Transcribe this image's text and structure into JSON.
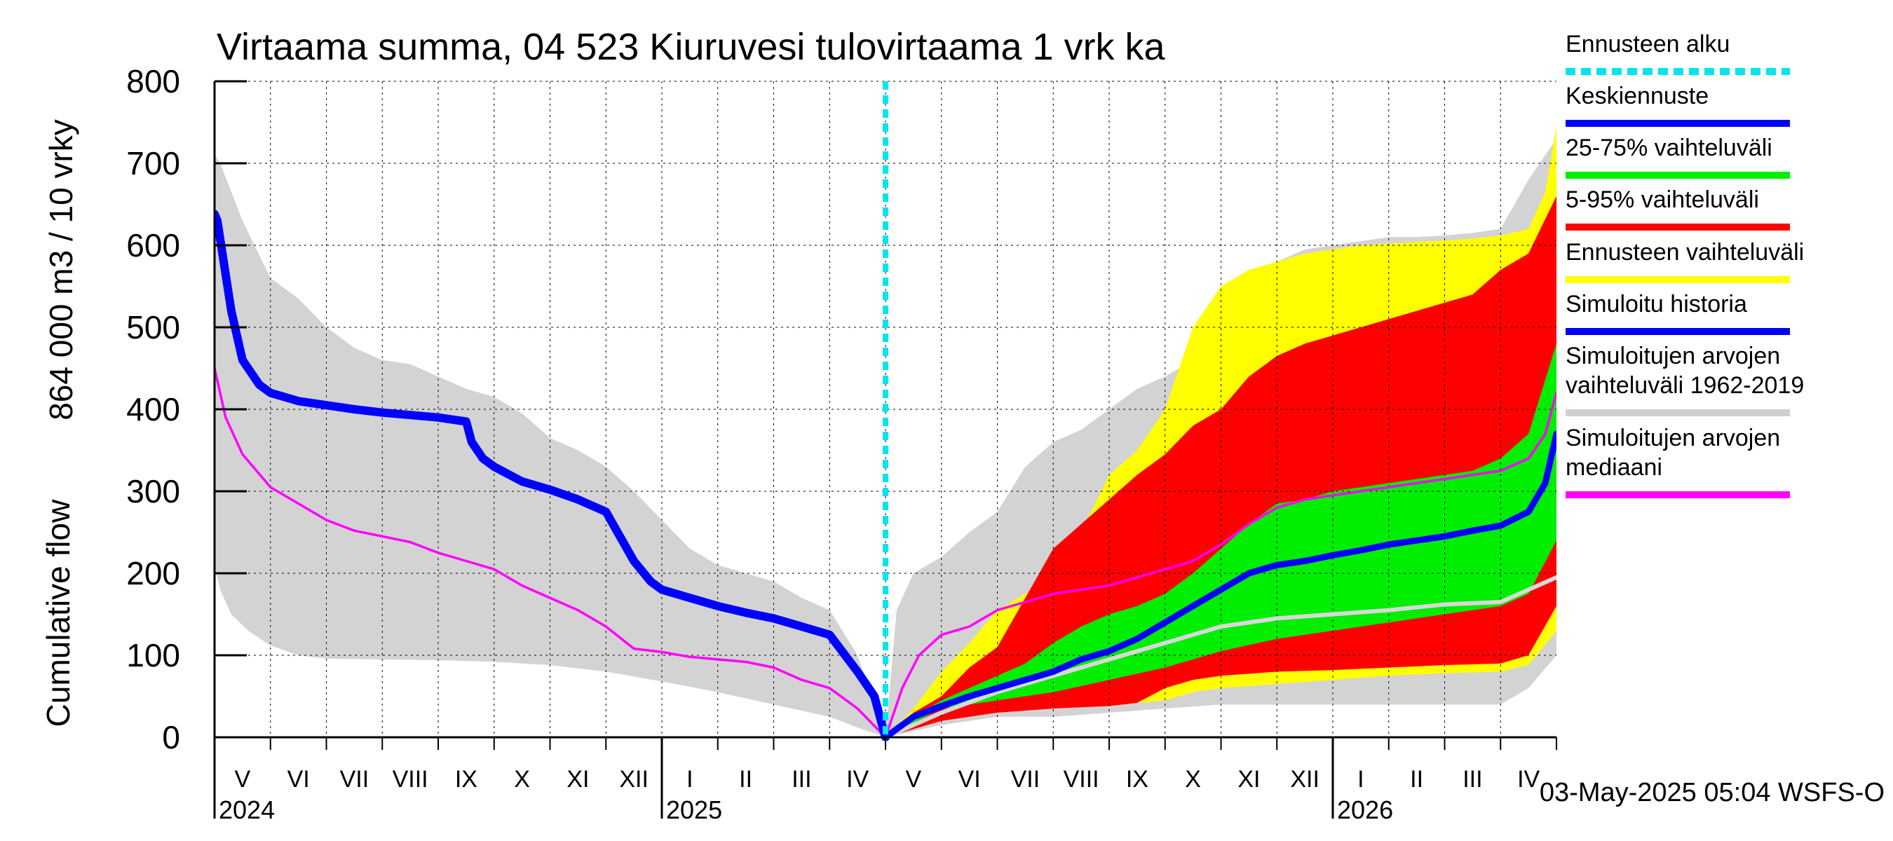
{
  "chart_data": {
    "type": "area",
    "title": "Virtaama summa, 04 523 Kiuruvesi tulovirtaama 1 vrk ka",
    "ylabel": "864 000 m3 / 10 vrky",
    "ylabel2": "Cumulative flow",
    "ylim": [
      0,
      800
    ],
    "yticks": [
      "0",
      "100",
      "200",
      "300",
      "400",
      "500",
      "600",
      "700",
      "800"
    ],
    "xlim": [
      0,
      24
    ],
    "months": [
      "V",
      "VI",
      "VII",
      "VIII",
      "IX",
      "X",
      "XI",
      "XII",
      "I",
      "II",
      "III",
      "IV",
      "V",
      "VI",
      "VII",
      "VIII",
      "IX",
      "X",
      "XI",
      "XII",
      "I",
      "II",
      "III",
      "IV"
    ],
    "years": [
      {
        "label": "2024",
        "x": 0
      },
      {
        "label": "2025",
        "x": 8
      },
      {
        "label": "2026",
        "x": 20
      }
    ],
    "forecast_start_x": 12,
    "footer": "03-May-2025 05:04 WSFS-O",
    "legend": [
      {
        "label": "Ennusteen alku",
        "color": "#00e5ee",
        "style": "dashed"
      },
      {
        "label": "Keskiennuste",
        "color": "#0000ff",
        "style": "solid"
      },
      {
        "label": "25-75% vaihteluväli",
        "color": "#00ee00",
        "style": "solid"
      },
      {
        "label": "5-95% vaihteluväli",
        "color": "#ff0000",
        "style": "solid"
      },
      {
        "label": "Ennusteen vaihteluväli",
        "color": "#ffff00",
        "style": "solid"
      },
      {
        "label": "Simuloitu historia",
        "color": "#0000ff",
        "style": "solid"
      },
      {
        "label": "Simuloitujen arvojen vaihteluväli 1962-2019",
        "lines": [
          "Simuloitujen arvojen",
          "vaihteluväli 1962-2019"
        ],
        "color": "#d0d0d0",
        "style": "solid"
      },
      {
        "label": "Simuloitujen arvojen mediaani",
        "lines": [
          "Simuloitujen arvojen",
          "mediaani"
        ],
        "color": "#ff00ff",
        "style": "solid"
      }
    ],
    "series": {
      "hist_range_upper": {
        "x": [
          0,
          0.1,
          0.5,
          1,
          1.5,
          2,
          2.5,
          3,
          3.5,
          4,
          4.5,
          5,
          5.5,
          6,
          6.5,
          7,
          7.5,
          8,
          8.5,
          9,
          9.5,
          10,
          10.5,
          11,
          11.5,
          12
        ],
        "y": [
          710,
          700,
          630,
          560,
          535,
          500,
          475,
          460,
          455,
          440,
          425,
          415,
          395,
          365,
          350,
          330,
          300,
          265,
          230,
          210,
          200,
          190,
          170,
          155,
          100,
          0
        ]
      },
      "hist_range_lower": {
        "x": [
          0,
          0.1,
          0.3,
          0.6,
          1,
          1.5,
          2,
          3,
          4,
          5,
          6,
          7,
          8,
          9,
          10,
          11,
          11.5,
          12
        ],
        "y": [
          210,
          180,
          150,
          130,
          112,
          100,
          96,
          95,
          94,
          92,
          88,
          80,
          68,
          55,
          40,
          25,
          12,
          0
        ]
      },
      "hist_median": {
        "x": [
          0,
          0.2,
          0.5,
          1,
          1.5,
          2,
          2.5,
          3,
          3.5,
          4,
          4.5,
          5,
          5.5,
          6,
          6.5,
          7,
          7.5,
          8,
          8.5,
          9,
          9.5,
          10,
          10.5,
          11,
          11.5,
          12
        ],
        "y": [
          450,
          390,
          345,
          305,
          285,
          265,
          252,
          245,
          238,
          225,
          215,
          205,
          185,
          170,
          155,
          135,
          108,
          104,
          98,
          95,
          92,
          85,
          70,
          60,
          35,
          0
        ]
      },
      "sim_history": {
        "x": [
          0,
          0.05,
          0.3,
          0.5,
          0.8,
          1,
          1.5,
          2,
          2.5,
          3,
          3.5,
          4,
          4.5,
          4.6,
          4.8,
          5,
          5.5,
          6,
          6.5,
          7,
          7.5,
          7.8,
          8,
          8.5,
          9,
          9.5,
          10,
          10.5,
          11,
          11.5,
          11.8,
          12
        ],
        "y": [
          638,
          630,
          520,
          460,
          430,
          420,
          410,
          405,
          400,
          396,
          393,
          390,
          385,
          360,
          340,
          330,
          312,
          302,
          290,
          275,
          215,
          190,
          180,
          170,
          160,
          152,
          145,
          135,
          125,
          80,
          50,
          0
        ]
      },
      "clim_range_upper": {
        "x": [
          12,
          12.2,
          12.5,
          13,
          13.5,
          14,
          14.5,
          15,
          15.5,
          16,
          16.5,
          17,
          17.5,
          18,
          18.5,
          19,
          19.5,
          20,
          20.5,
          21,
          21.5,
          22,
          22.5,
          23,
          23.5,
          24
        ],
        "y": [
          0,
          155,
          200,
          220,
          250,
          275,
          330,
          360,
          375,
          400,
          425,
          440,
          460,
          480,
          540,
          580,
          595,
          600,
          605,
          610,
          610,
          612,
          615,
          620,
          680,
          730
        ]
      },
      "clim_range_lower": {
        "x": [
          12,
          13,
          14,
          15,
          16,
          17,
          18,
          19,
          20,
          21,
          22,
          23,
          23.5,
          24
        ],
        "y": [
          0,
          15,
          25,
          25,
          30,
          35,
          40,
          40,
          40,
          40,
          40,
          40,
          60,
          100
        ]
      },
      "clim_median": {
        "x": [
          12,
          13,
          14,
          15,
          16,
          17,
          18,
          19,
          20,
          21,
          22,
          23,
          23.5,
          24
        ],
        "y": [
          0,
          30,
          55,
          75,
          95,
          115,
          135,
          145,
          150,
          155,
          162,
          165,
          180,
          195
        ]
      },
      "forecast_upper": {
        "x": [
          12,
          12.5,
          13,
          13.5,
          14,
          14.5,
          15,
          15.5,
          16,
          16.5,
          17,
          17.5,
          18,
          18.5,
          19,
          19.5,
          20,
          20.5,
          21,
          21.5,
          22,
          22.5,
          23,
          23.5,
          23.8,
          24
        ],
        "y": [
          0,
          35,
          80,
          115,
          155,
          175,
          195,
          250,
          320,
          350,
          400,
          500,
          550,
          570,
          580,
          590,
          595,
          600,
          602,
          604,
          606,
          608,
          612,
          620,
          665,
          745
        ]
      },
      "forecast_lower": {
        "x": [
          12,
          13,
          14,
          15,
          16,
          16.5,
          17,
          17.5,
          18,
          19,
          20,
          21,
          22,
          23,
          23.5,
          24
        ],
        "y": [
          0,
          25,
          32,
          35,
          38,
          42,
          45,
          55,
          60,
          65,
          70,
          75,
          78,
          80,
          88,
          130
        ]
      },
      "p5_95_upper": {
        "x": [
          12,
          12.5,
          13,
          13.5,
          14,
          14.5,
          15,
          15.5,
          16,
          16.5,
          17,
          17.5,
          18,
          18.5,
          19,
          19.5,
          20,
          20.5,
          21,
          21.5,
          22,
          22.5,
          23,
          23.5,
          24
        ],
        "y": [
          0,
          30,
          50,
          85,
          110,
          170,
          230,
          260,
          290,
          320,
          345,
          380,
          400,
          440,
          465,
          480,
          490,
          500,
          510,
          520,
          530,
          540,
          570,
          590,
          660
        ]
      },
      "p5_95_lower": {
        "x": [
          12,
          13,
          14,
          15,
          16,
          16.5,
          17,
          17.5,
          18,
          19,
          20,
          21,
          22,
          23,
          23.5,
          24
        ],
        "y": [
          0,
          20,
          30,
          35,
          38,
          42,
          60,
          70,
          75,
          80,
          82,
          85,
          88,
          90,
          100,
          160
        ]
      },
      "p25_75_upper": {
        "x": [
          12,
          12.5,
          13,
          13.5,
          14,
          14.5,
          15,
          15.5,
          16,
          16.5,
          17,
          17.5,
          18,
          18.5,
          19,
          19.5,
          20,
          20.5,
          21,
          21.5,
          22,
          22.5,
          23,
          23.5,
          24
        ],
        "y": [
          0,
          25,
          45,
          60,
          75,
          90,
          115,
          135,
          150,
          160,
          175,
          200,
          230,
          260,
          285,
          290,
          300,
          305,
          310,
          315,
          320,
          325,
          340,
          370,
          480
        ]
      },
      "p25_75_lower": {
        "x": [
          12,
          13,
          14,
          15,
          16,
          17,
          18,
          19,
          20,
          21,
          22,
          23,
          23.5,
          24
        ],
        "y": [
          0,
          35,
          45,
          55,
          70,
          85,
          105,
          120,
          130,
          140,
          150,
          160,
          175,
          240
        ]
      },
      "mean_forecast": {
        "x": [
          12,
          12.5,
          13,
          13.5,
          14,
          14.5,
          15,
          15.5,
          16,
          16.5,
          17,
          17.5,
          18,
          18.5,
          19,
          19.5,
          20,
          20.5,
          21,
          21.5,
          22,
          22.5,
          23,
          23.5,
          23.8,
          24
        ],
        "y": [
          0,
          25,
          38,
          50,
          60,
          70,
          80,
          95,
          105,
          120,
          140,
          160,
          180,
          200,
          210,
          215,
          222,
          228,
          235,
          240,
          245,
          252,
          258,
          275,
          310,
          370
        ]
      },
      "hist_median_forecast": {
        "x": [
          12,
          12.3,
          12.6,
          13,
          13.5,
          14,
          14.5,
          15,
          15.5,
          16,
          16.5,
          17,
          17.5,
          18,
          18.5,
          19,
          19.5,
          20,
          20.5,
          21,
          21.5,
          22,
          22.5,
          23,
          23.5,
          23.8,
          24
        ],
        "y": [
          0,
          60,
          100,
          125,
          135,
          155,
          165,
          175,
          180,
          185,
          195,
          205,
          215,
          235,
          260,
          280,
          290,
          295,
          300,
          305,
          310,
          315,
          320,
          325,
          340,
          370,
          420
        ]
      }
    }
  }
}
